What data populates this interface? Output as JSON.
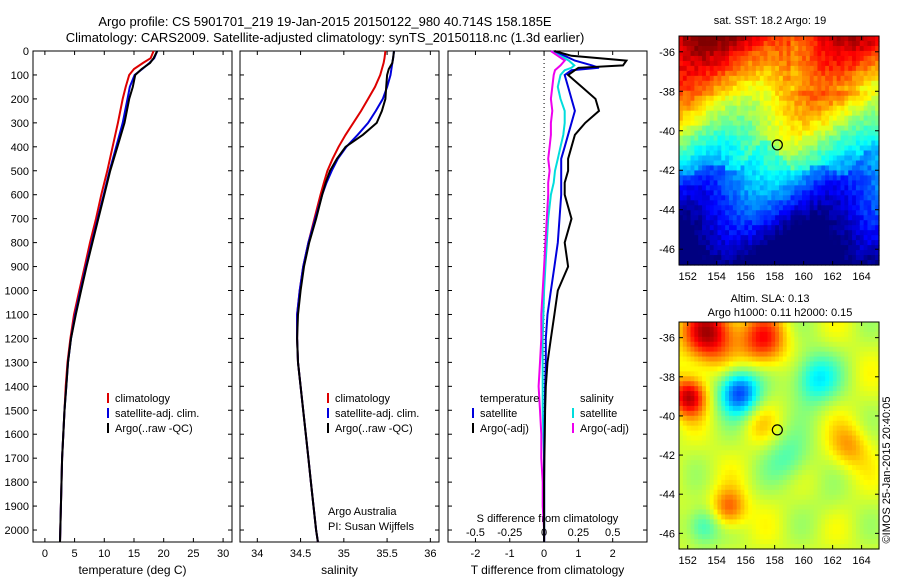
{
  "header": {
    "title_line1": "Argo profile: CS 5901701_219 19-Jan-2015 20150122_980 40.714S 158.185E",
    "title_line2": "Climatology: CARS2009. Satellite-adjusted climatology: synTS_20150118.nc (1.3d earlier)"
  },
  "depth_axis": {
    "ticks": [
      0,
      100,
      200,
      300,
      400,
      500,
      600,
      700,
      800,
      900,
      1000,
      1100,
      1200,
      1300,
      1400,
      1500,
      1600,
      1700,
      1800,
      1900,
      2000
    ],
    "range": [
      0,
      2050
    ]
  },
  "colors": {
    "climatology": "#dd0000",
    "satellite": "#0000dd",
    "argo": "#000000",
    "salinity_satellite": "#00dddd",
    "salinity_argo": "#ee00ee"
  },
  "chart_data": [
    {
      "type": "line",
      "name": "temperature",
      "xlabel": "temperature (deg C)",
      "xticks": [
        0,
        5,
        10,
        15,
        20,
        25,
        30
      ],
      "xlim": [
        -2,
        31.5
      ],
      "legend": {
        "placement": "lower-middle",
        "items": [
          "climatology",
          "satellite-adj. clim.",
          "Argo(..raw -QC)"
        ]
      },
      "depth": [
        0,
        30,
        50,
        75,
        100,
        150,
        200,
        300,
        400,
        500,
        600,
        700,
        800,
        900,
        1000,
        1100,
        1200,
        1300,
        1400,
        1500,
        1600,
        1700,
        1800,
        1900,
        2000,
        2050
      ],
      "series": [
        {
          "key": "climatology",
          "values": [
            18.3,
            17.8,
            16.5,
            15.0,
            14.2,
            13.6,
            13.1,
            12.3,
            11.4,
            10.5,
            9.5,
            8.6,
            7.6,
            6.7,
            5.8,
            4.9,
            4.3,
            3.8,
            3.5,
            3.3,
            3.1,
            2.9,
            2.8,
            2.7,
            2.6,
            2.55
          ]
        },
        {
          "key": "satellite",
          "values": [
            18.9,
            18.4,
            17.6,
            16.4,
            15.1,
            14.3,
            13.9,
            13.1,
            12.0,
            10.9,
            9.9,
            8.9,
            7.9,
            6.9,
            6.0,
            5.1,
            4.4,
            3.9,
            3.6,
            3.3,
            3.1,
            2.9,
            2.8,
            2.7,
            2.6,
            2.55
          ]
        },
        {
          "key": "argo",
          "values": [
            18.9,
            18.3,
            17.7,
            16.3,
            15.2,
            14.8,
            14.2,
            13.4,
            12.2,
            11.0,
            10.0,
            9.0,
            8.0,
            7.0,
            6.1,
            5.2,
            4.4,
            3.9,
            3.6,
            3.3,
            3.1,
            2.9,
            2.8,
            2.7,
            2.6,
            2.55
          ]
        }
      ]
    },
    {
      "type": "line",
      "name": "salinity",
      "xlabel": "salinity",
      "xticks": [
        34,
        34.5,
        35,
        35.5,
        36
      ],
      "xlim": [
        33.8,
        36.1
      ],
      "legend": {
        "placement": "lower-middle",
        "items": [
          "climatology",
          "satellite-adj. clim.",
          "Argo(..raw -QC)"
        ]
      },
      "annotation": [
        "Argo Australia",
        "PI: Susan Wijffels"
      ],
      "depth": [
        0,
        30,
        50,
        75,
        100,
        150,
        200,
        250,
        300,
        350,
        400,
        450,
        500,
        550,
        600,
        700,
        800,
        900,
        1000,
        1100,
        1200,
        1300,
        1400,
        1500,
        1600,
        1700,
        1800,
        1900,
        2000,
        2050
      ],
      "series": [
        {
          "key": "climatology",
          "values": [
            35.48,
            35.47,
            35.46,
            35.44,
            35.42,
            35.36,
            35.28,
            35.2,
            35.11,
            35.02,
            34.94,
            34.87,
            34.81,
            34.77,
            34.73,
            34.66,
            34.59,
            34.53,
            34.49,
            34.46,
            34.46,
            34.47,
            34.5,
            34.53,
            34.56,
            34.59,
            34.62,
            34.65,
            34.68,
            34.7
          ]
        },
        {
          "key": "satellite",
          "values": [
            35.58,
            35.57,
            35.56,
            35.55,
            35.54,
            35.5,
            35.45,
            35.37,
            35.28,
            35.16,
            35.03,
            34.93,
            34.86,
            34.8,
            34.75,
            34.67,
            34.59,
            34.53,
            34.49,
            34.46,
            34.46,
            34.47,
            34.5,
            34.53,
            34.56,
            34.59,
            34.62,
            34.65,
            34.68,
            34.7
          ]
        },
        {
          "key": "argo",
          "values": [
            35.58,
            35.57,
            35.56,
            35.52,
            35.5,
            35.49,
            35.48,
            35.44,
            35.38,
            35.22,
            35.02,
            34.92,
            34.84,
            34.79,
            34.75,
            34.68,
            34.6,
            34.54,
            34.5,
            34.47,
            34.46,
            34.47,
            34.5,
            34.53,
            34.56,
            34.59,
            34.62,
            34.65,
            34.68,
            34.7
          ]
        }
      ]
    },
    {
      "type": "line",
      "name": "differences",
      "xlabel": "T difference from climatology",
      "xticks": [
        -2,
        -1,
        0,
        1,
        2
      ],
      "xticklabels": [
        "-2",
        "-1",
        "0",
        "1",
        "2"
      ],
      "xlim": [
        -2.8,
        3.0
      ],
      "xlabel_top": "S difference from climatology",
      "xticks_top": [
        -0.5,
        -0.25,
        0,
        0.25,
        0.5
      ],
      "xticklabels_top": [
        "-0.5",
        "-0.25",
        "0",
        "0.25",
        "0.5"
      ],
      "legend": {
        "placement": "lower-middle",
        "temperature_header": "temperature",
        "salinity_header": "salinity",
        "temperature_items": [
          "satellite",
          "Argo(-adj)"
        ],
        "salinity_items": [
          "satellite",
          "Argo(-adj)"
        ]
      },
      "depth": [
        0,
        20,
        40,
        60,
        70,
        80,
        100,
        150,
        200,
        250,
        300,
        350,
        400,
        450,
        500,
        550,
        600,
        700,
        800,
        900,
        1000,
        1100,
        1200,
        1300,
        1400,
        1500,
        1600,
        1700,
        1800,
        1900,
        2000,
        2050
      ],
      "series": [
        {
          "key": "T satellite",
          "values": [
            0.3,
            0.6,
            0.9,
            1.4,
            1.6,
            0.8,
            0.6,
            0.7,
            0.8,
            0.9,
            0.8,
            0.7,
            0.6,
            0.5,
            0.5,
            0.5,
            0.5,
            0.45,
            0.4,
            0.3,
            0.2,
            0.1,
            0.05,
            0.05,
            0.03,
            0.02,
            0.01,
            0.0,
            0.0,
            0.0,
            0.0,
            0.0
          ]
        },
        {
          "key": "T argo",
          "values": [
            0.3,
            0.8,
            2.4,
            2.3,
            1.0,
            0.9,
            0.7,
            1.1,
            1.5,
            1.6,
            1.2,
            0.9,
            0.8,
            0.7,
            0.7,
            0.6,
            0.6,
            0.8,
            0.6,
            0.7,
            0.4,
            0.3,
            0.2,
            0.1,
            0.05,
            0.03,
            0.02,
            0.01,
            0.0,
            0.0,
            0.0,
            0.0
          ]
        },
        {
          "key": "S satellite",
          "values": [
            0.05,
            0.12,
            0.18,
            0.22,
            0.2,
            0.15,
            0.12,
            0.1,
            0.12,
            0.15,
            0.15,
            0.14,
            0.12,
            0.1,
            0.08,
            0.07,
            0.05,
            0.03,
            0.02,
            0.01,
            0.0,
            -0.005,
            -0.01,
            -0.01,
            -0.01,
            -0.01,
            -0.005,
            0.0,
            0.0,
            0.0,
            0.0,
            0.0
          ]
        },
        {
          "key": "S argo",
          "values": [
            0.05,
            0.1,
            0.15,
            0.12,
            0.1,
            0.08,
            0.07,
            0.06,
            0.05,
            0.06,
            0.05,
            0.05,
            0.04,
            0.03,
            0.04,
            0.03,
            0.03,
            0.02,
            0.01,
            0.0,
            -0.01,
            -0.02,
            -0.02,
            -0.03,
            -0.04,
            -0.03,
            -0.02,
            -0.02,
            -0.01,
            -0.01,
            0.0,
            0.0
          ]
        }
      ]
    },
    {
      "type": "heatmap",
      "name": "sst_map",
      "title": "sat. SST: 18.2 Argo: 19",
      "xticks": [
        152,
        154,
        156,
        158,
        160,
        162,
        164
      ],
      "yticks": [
        -36,
        -38,
        -40,
        -42,
        -44,
        -46
      ],
      "xlim": [
        151.4,
        165.2
      ],
      "ylim": [
        -46.8,
        -35.2
      ],
      "marker": {
        "lon": 158.185,
        "lat": -40.714
      }
    },
    {
      "type": "heatmap",
      "name": "sla_map",
      "title_line1": "Altim. SLA: 0.13",
      "title_line2": "Argo h1000: 0.11 h2000: 0.15",
      "xticks": [
        152,
        154,
        156,
        158,
        160,
        162,
        164
      ],
      "yticks": [
        -36,
        -38,
        -40,
        -42,
        -44,
        -46
      ],
      "xlim": [
        151.4,
        165.2
      ],
      "ylim": [
        -46.8,
        -35.2
      ],
      "marker": {
        "lon": 158.185,
        "lat": -40.714
      }
    }
  ],
  "footer": {
    "timestamp": "©IMOS 25-Jan-2015 20:40:05"
  }
}
